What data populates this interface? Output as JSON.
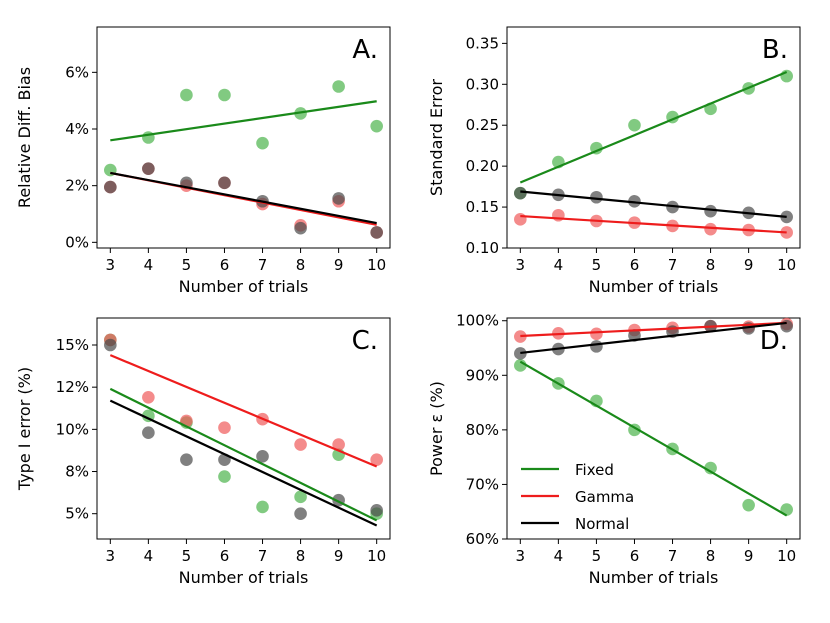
{
  "colors": {
    "Fixed": "#1a8a1a",
    "Gamma": "#ee1c1c",
    "Normal": "#000000",
    "Fixed_point": "#4cb34c",
    "Gamma_point": "#f05a5a",
    "Normal_point": "#4a4a4a"
  },
  "legend": [
    {
      "name": "Fixed",
      "color_key": "Fixed"
    },
    {
      "name": "Gamma",
      "color_key": "Gamma"
    },
    {
      "name": "Normal",
      "color_key": "Normal"
    }
  ],
  "chart_data": [
    {
      "type": "scatter",
      "panel": "A.",
      "xlabel": "Number of trials",
      "ylabel": "Relative Diff. Bias",
      "x": [
        3,
        4,
        5,
        6,
        7,
        8,
        9,
        10
      ],
      "xticks": [
        "3",
        "4",
        "5",
        "6",
        "7",
        "8",
        "9",
        "10"
      ],
      "yticks": [
        {
          "v": 0,
          "label": "0%"
        },
        {
          "v": 2,
          "label": "2%"
        },
        {
          "v": 4,
          "label": "4%"
        },
        {
          "v": 6,
          "label": "6%"
        }
      ],
      "ylim": [
        -0.2,
        7.6
      ],
      "series": [
        {
          "name": "Fixed",
          "points": [
            2.55,
            3.7,
            5.2,
            5.2,
            3.5,
            4.55,
            5.5,
            4.1
          ],
          "line": [
            3.6,
            4.98
          ]
        },
        {
          "name": "Gamma",
          "points": [
            1.95,
            2.6,
            2.0,
            2.1,
            1.35,
            0.6,
            1.45,
            0.35
          ],
          "line": [
            2.45,
            0.62
          ]
        },
        {
          "name": "Normal",
          "points": [
            1.95,
            2.6,
            2.1,
            2.1,
            1.45,
            0.5,
            1.55,
            0.35
          ],
          "line": [
            2.45,
            0.68
          ]
        }
      ]
    },
    {
      "type": "scatter",
      "panel": "B.",
      "xlabel": "Number of trials",
      "ylabel": "Standard Error",
      "x": [
        3,
        4,
        5,
        6,
        7,
        8,
        9,
        10
      ],
      "xticks": [
        "3",
        "4",
        "5",
        "6",
        "7",
        "8",
        "9",
        "10"
      ],
      "yticks": [
        {
          "v": 0.1,
          "label": "0.10"
        },
        {
          "v": 0.15,
          "label": "0.15"
        },
        {
          "v": 0.2,
          "label": "0.20"
        },
        {
          "v": 0.25,
          "label": "0.25"
        },
        {
          "v": 0.3,
          "label": "0.30"
        },
        {
          "v": 0.35,
          "label": "0.35"
        }
      ],
      "ylim": [
        0.1,
        0.37
      ],
      "series": [
        {
          "name": "Fixed",
          "points": [
            0.167,
            0.205,
            0.222,
            0.25,
            0.26,
            0.27,
            0.295,
            0.31
          ],
          "line": [
            0.18,
            0.315
          ]
        },
        {
          "name": "Gamma",
          "points": [
            0.135,
            0.14,
            0.133,
            0.131,
            0.127,
            0.123,
            0.122,
            0.119
          ],
          "line": [
            0.139,
            0.119
          ]
        },
        {
          "name": "Normal",
          "points": [
            0.167,
            0.165,
            0.162,
            0.157,
            0.15,
            0.145,
            0.143,
            0.138
          ],
          "line": [
            0.169,
            0.138
          ]
        }
      ]
    },
    {
      "type": "scatter",
      "panel": "C.",
      "xlabel": "Number of trials",
      "ylabel": "Type I error (%)",
      "x": [
        3,
        4,
        5,
        6,
        7,
        8,
        9,
        10
      ],
      "xticks": [
        "3",
        "4",
        "5",
        "6",
        "7",
        "8",
        "9",
        "10"
      ],
      "yticks": [
        {
          "v": 5,
          "label": "5%"
        },
        {
          "v": 7.5,
          "label": "8%"
        },
        {
          "v": 10,
          "label": "10%"
        },
        {
          "v": 12.5,
          "label": "12%"
        },
        {
          "v": 15,
          "label": "15%"
        }
      ],
      "ylim": [
        3.5,
        16.6
      ],
      "series": [
        {
          "name": "Fixed",
          "points": [
            15.3,
            10.8,
            10.4,
            7.2,
            5.4,
            6.0,
            8.5,
            5.0
          ],
          "line": [
            12.4,
            4.6
          ]
        },
        {
          "name": "Gamma",
          "points": [
            15.3,
            11.9,
            10.5,
            10.1,
            10.6,
            9.1,
            9.1,
            8.2
          ],
          "line": [
            14.4,
            7.8
          ]
        },
        {
          "name": "Normal",
          "points": [
            15.0,
            9.8,
            8.2,
            8.2,
            8.4,
            5.0,
            5.8,
            5.2
          ],
          "line": [
            11.7,
            4.3
          ]
        }
      ]
    },
    {
      "type": "scatter",
      "panel": "D.",
      "xlabel": "Number of trials",
      "ylabel": "Power ε (%)",
      "x": [
        3,
        4,
        5,
        6,
        7,
        8,
        9,
        10
      ],
      "xticks": [
        "3",
        "4",
        "5",
        "6",
        "7",
        "8",
        "9",
        "10"
      ],
      "yticks": [
        {
          "v": 60,
          "label": "60%"
        },
        {
          "v": 70,
          "label": "70%"
        },
        {
          "v": 80,
          "label": "80%"
        },
        {
          "v": 90,
          "label": "90%"
        },
        {
          "v": 100,
          "label": "100%"
        }
      ],
      "ylim": [
        60,
        100.5
      ],
      "legend_position": "lower-left",
      "series": [
        {
          "name": "Fixed",
          "points": [
            91.8,
            88.5,
            85.3,
            80.0,
            76.5,
            73.0,
            66.2,
            65.4
          ],
          "line": [
            92.5,
            64.3
          ]
        },
        {
          "name": "Gamma",
          "points": [
            97.1,
            97.7,
            97.6,
            98.3,
            98.7,
            99.0,
            98.9,
            99.4
          ],
          "line": [
            97.2,
            99.6
          ]
        },
        {
          "name": "Normal",
          "points": [
            94.0,
            94.8,
            95.3,
            97.3,
            98.0,
            99.0,
            98.6,
            99.0
          ],
          "line": [
            94.1,
            99.6
          ]
        }
      ]
    }
  ]
}
